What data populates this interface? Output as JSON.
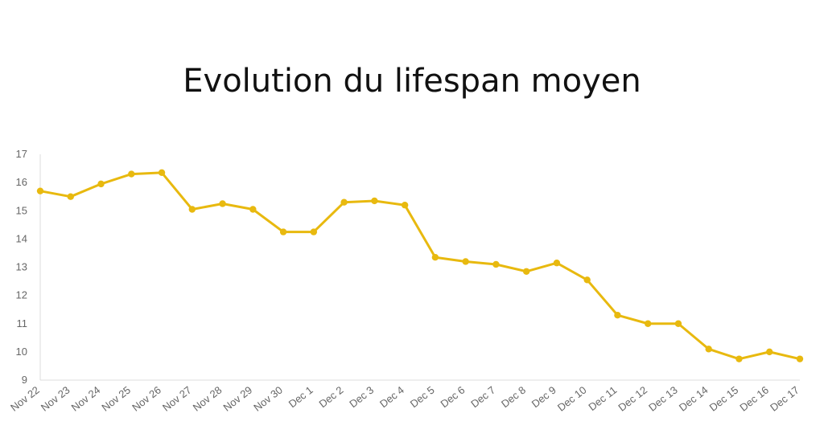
{
  "chart_data": {
    "type": "line",
    "title": "Evolution du lifespan moyen",
    "xlabel": "",
    "ylabel": "",
    "categories": [
      "Nov 22",
      "Nov 23",
      "Nov 24",
      "Nov 25",
      "Nov 26",
      "Nov 27",
      "Nov 28",
      "Nov 29",
      "Nov 30",
      "Dec 1",
      "Dec 2",
      "Dec 3",
      "Dec 4",
      "Dec 5",
      "Dec 6",
      "Dec 7",
      "Dec 8",
      "Dec 9",
      "Dec 10",
      "Dec 11",
      "Dec 12",
      "Dec 13",
      "Dec 14",
      "Dec 15",
      "Dec 16",
      "Dec 17"
    ],
    "values": [
      15.7,
      15.5,
      15.95,
      16.3,
      16.35,
      15.05,
      15.25,
      15.05,
      14.25,
      14.25,
      15.3,
      15.35,
      15.2,
      13.35,
      13.2,
      13.1,
      12.85,
      13.15,
      12.55,
      11.3,
      11.0,
      11.0,
      10.1,
      9.75,
      10.0,
      9.75
    ],
    "yticks": [
      "9",
      "10",
      "11",
      "12",
      "13",
      "14",
      "15",
      "16",
      "17"
    ],
    "ylim": [
      9,
      17
    ],
    "grid": false,
    "legend": "none",
    "color": "#e8b90f"
  }
}
